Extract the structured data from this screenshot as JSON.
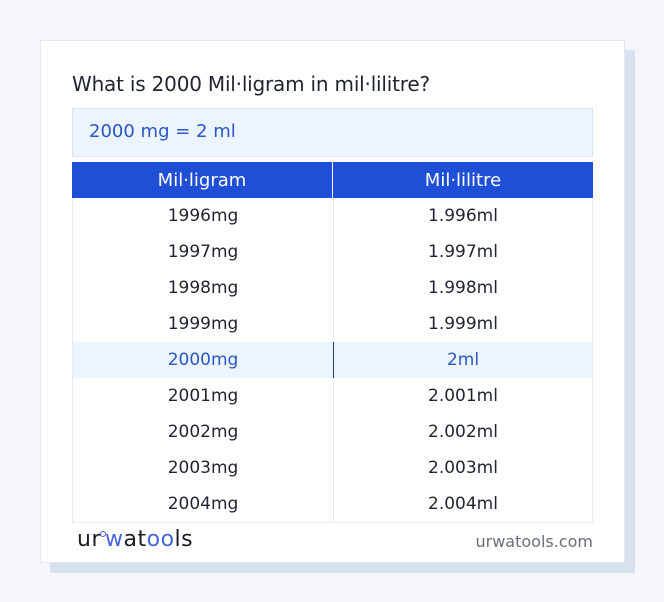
{
  "title": "What is 2000 Mil·ligram in mil·lilitre?",
  "result": "2000 mg = 2 ml",
  "table": {
    "headers": [
      "Mil·ligram",
      "Mil·lilitre"
    ],
    "rows": [
      [
        "1996mg",
        "1.996ml"
      ],
      [
        "1997mg",
        "1.997ml"
      ],
      [
        "1998mg",
        "1.998ml"
      ],
      [
        "1999mg",
        "1.999ml"
      ],
      [
        "2000mg",
        "2ml"
      ],
      [
        "2001mg",
        "2.001ml"
      ],
      [
        "2002mg",
        "2.002ml"
      ],
      [
        "2003mg",
        "2.003ml"
      ],
      [
        "2004mg",
        "2.004ml"
      ]
    ],
    "highlight_index": 4
  },
  "footer": {
    "logo_parts": [
      "ur",
      "w",
      "at",
      "oo",
      "ls"
    ],
    "site": "urwatools.com"
  },
  "colors": {
    "accent": "#1f4fd6",
    "highlight_bg": "#ebf4ff",
    "highlight_text": "#2a56c6"
  }
}
